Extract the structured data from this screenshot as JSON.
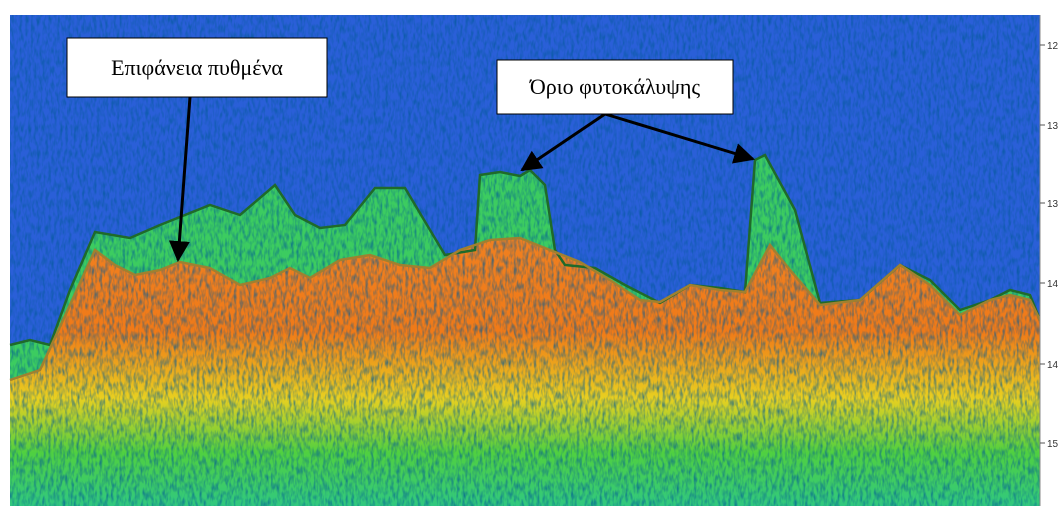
{
  "annotations": {
    "bottom_surface": "Επιφάνεια πυθμένα",
    "vegetation_limit": "Όριο φυτοκάλυψης"
  },
  "depth_axis": {
    "ticks": [
      "12",
      "13",
      "13",
      "14",
      "14",
      "15"
    ]
  }
}
